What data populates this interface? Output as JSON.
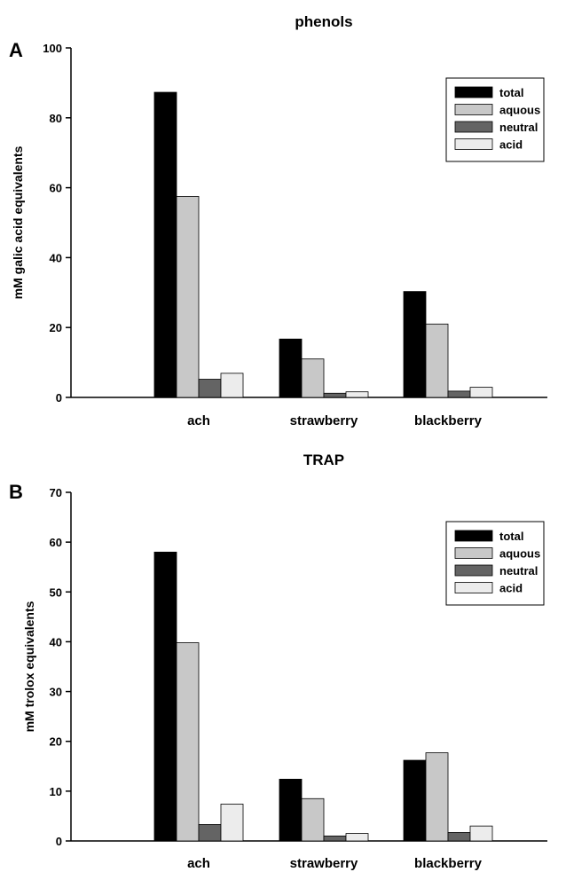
{
  "chart_data": [
    {
      "type": "bar",
      "panel": "A",
      "title": "phenols",
      "xlabel": "",
      "ylabel": "mM galic acid equivalents",
      "ylim": [
        0,
        100
      ],
      "yticks": [
        0,
        20,
        40,
        60,
        80,
        100
      ],
      "categories": [
        "ach",
        "strawberry",
        "blackberry"
      ],
      "legend_position": "top-right",
      "series": [
        {
          "name": "total",
          "color": "#000000",
          "values": [
            87.3,
            16.7,
            30.3
          ]
        },
        {
          "name": "aquous",
          "color": "#c8c8c8",
          "values": [
            57.5,
            11.0,
            21.0
          ]
        },
        {
          "name": "neutral",
          "color": "#646464",
          "values": [
            5.2,
            1.2,
            1.8
          ]
        },
        {
          "name": "acid",
          "color": "#ececec",
          "values": [
            6.9,
            1.6,
            2.9
          ]
        }
      ]
    },
    {
      "type": "bar",
      "panel": "B",
      "title": "TRAP",
      "xlabel": "",
      "ylabel": "mM trolox equivalents",
      "ylim": [
        0,
        70
      ],
      "yticks": [
        0,
        10,
        20,
        30,
        40,
        50,
        60,
        70
      ],
      "categories": [
        "ach",
        "strawberry",
        "blackberry"
      ],
      "legend_position": "top-right",
      "series": [
        {
          "name": "total",
          "color": "#000000",
          "values": [
            58.0,
            12.4,
            16.2
          ]
        },
        {
          "name": "aquous",
          "color": "#c8c8c8",
          "values": [
            39.8,
            8.5,
            17.7
          ]
        },
        {
          "name": "neutral",
          "color": "#646464",
          "values": [
            3.3,
            1.0,
            1.7
          ]
        },
        {
          "name": "acid",
          "color": "#ececec",
          "values": [
            7.4,
            1.5,
            3.0
          ]
        }
      ]
    }
  ]
}
